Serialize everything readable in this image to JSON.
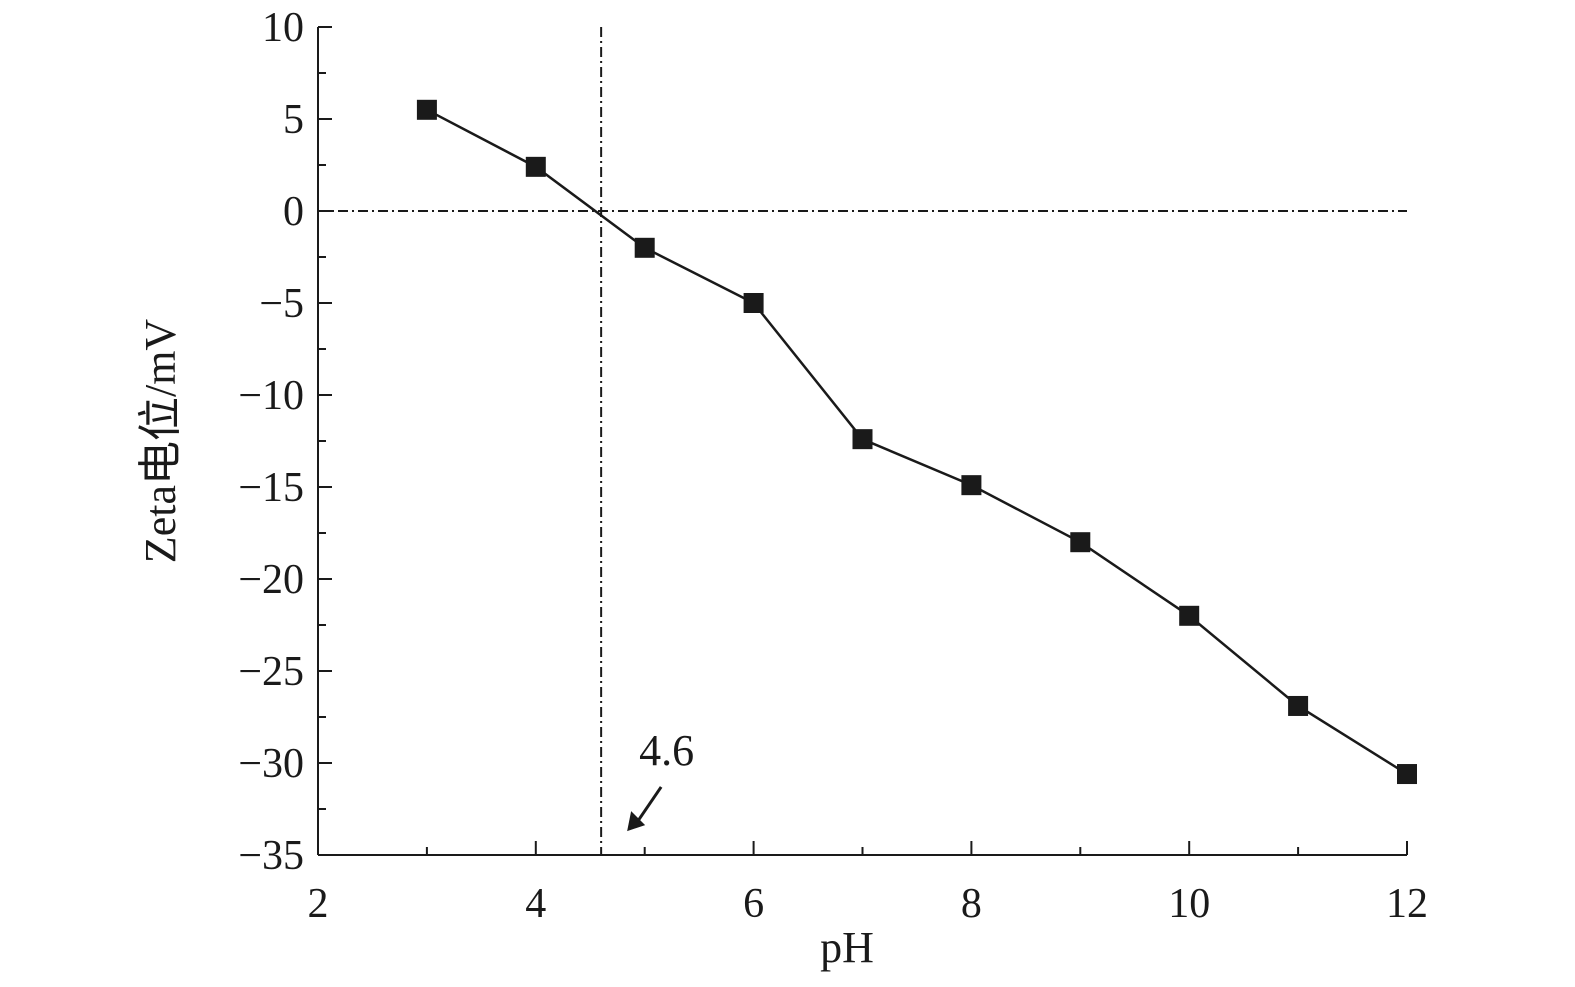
{
  "chart_data": {
    "type": "line",
    "title": "",
    "xlabel": "pH",
    "ylabel": "Zeta电位/mV",
    "xlim": [
      2,
      12
    ],
    "ylim": [
      -35,
      10
    ],
    "x_ticks": [
      2,
      4,
      6,
      8,
      10,
      12
    ],
    "x_tick_labels": [
      "2",
      "4",
      "6",
      "8",
      "10",
      "12"
    ],
    "y_ticks": [
      10,
      5,
      0,
      -5,
      -10,
      -15,
      -20,
      -25,
      -30,
      -35
    ],
    "y_tick_labels": [
      "10",
      "5",
      "0",
      "−5",
      "−10",
      "−15",
      "−20",
      "−25",
      "−30",
      "−35"
    ],
    "x_minor_step": 1,
    "y_minor_step": 2.5,
    "grid": false,
    "series": [
      {
        "marker": "square",
        "color": "#1a1a1a",
        "x": [
          3,
          4,
          5,
          6,
          7,
          8,
          9,
          10,
          11,
          12
        ],
        "y": [
          5.5,
          2.4,
          -2.0,
          -5.0,
          -12.4,
          -14.9,
          -18.0,
          -22.0,
          -26.9,
          -30.6
        ]
      }
    ],
    "reference_lines": [
      {
        "orientation": "horizontal",
        "value": 0,
        "style": "dash-dot"
      },
      {
        "orientation": "vertical",
        "value": 4.6,
        "style": "dash-dot"
      }
    ],
    "annotations": [
      {
        "text": "4.6",
        "x": 4.6,
        "arrow": true
      }
    ]
  }
}
